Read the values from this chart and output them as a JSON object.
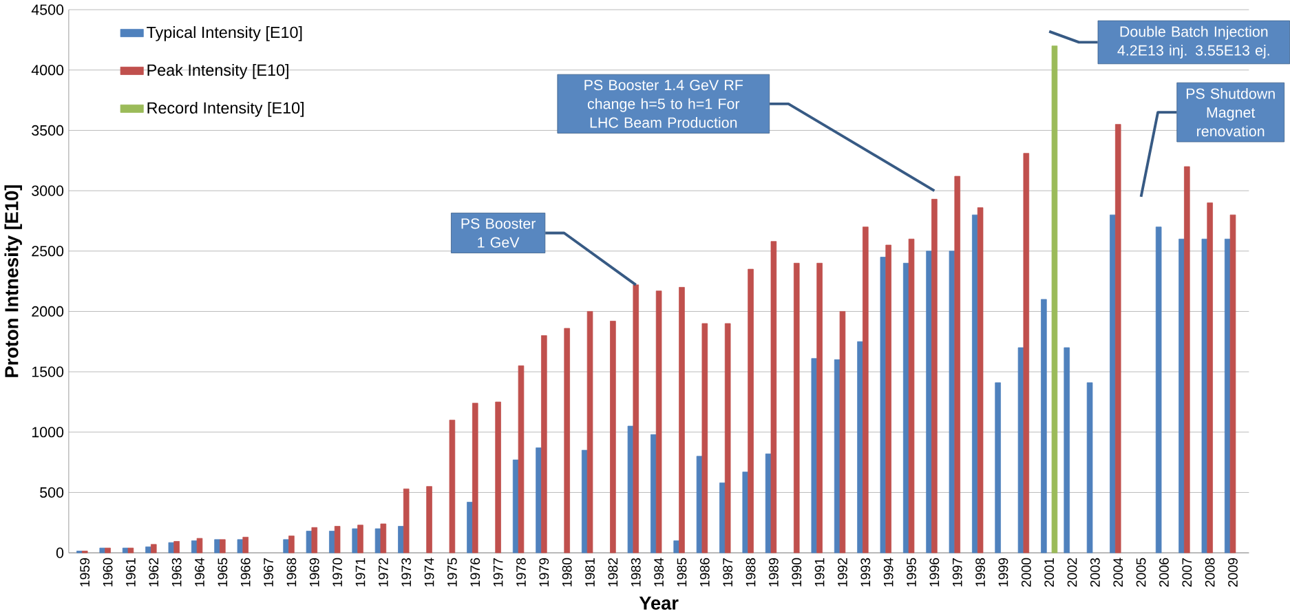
{
  "chart_data": {
    "type": "bar",
    "xlabel": "Year",
    "ylabel": "Proton Intnesity [E10]",
    "categories": [
      "1959",
      "1960",
      "1961",
      "1962",
      "1963",
      "1964",
      "1965",
      "1966",
      "1967",
      "1968",
      "1969",
      "1970",
      "1971",
      "1972",
      "1973",
      "1974",
      "1975",
      "1976",
      "1977",
      "1978",
      "1979",
      "1980",
      "1981",
      "1982",
      "1983",
      "1984",
      "1985",
      "1986",
      "1987",
      "1988",
      "1989",
      "1990",
      "1991",
      "1992",
      "1993",
      "1994",
      "1995",
      "1996",
      "1997",
      "1998",
      "1999",
      "2000",
      "2001",
      "2002",
      "2003",
      "2004",
      "2005",
      "2006",
      "2007",
      "2008",
      "2009"
    ],
    "series": [
      {
        "name": "Typical Intensity [E10]",
        "color": "#4f81bd",
        "values": [
          15,
          40,
          40,
          50,
          85,
          100,
          110,
          110,
          null,
          110,
          180,
          180,
          200,
          200,
          220,
          null,
          null,
          420,
          null,
          770,
          870,
          null,
          850,
          null,
          1050,
          980,
          100,
          800,
          580,
          670,
          820,
          null,
          1610,
          1600,
          1750,
          2450,
          2400,
          2500,
          2500,
          2800,
          1410,
          1700,
          2100,
          1700,
          1410,
          2800,
          null,
          2700,
          2600,
          2600,
          2600
        ]
      },
      {
        "name": "Peak Intensity [E10]",
        "color": "#c0504d",
        "values": [
          15,
          40,
          40,
          70,
          95,
          120,
          110,
          130,
          null,
          140,
          210,
          220,
          230,
          240,
          530,
          550,
          1100,
          1240,
          1250,
          1550,
          1800,
          1860,
          2000,
          1920,
          2220,
          2170,
          2200,
          1900,
          1900,
          2350,
          2580,
          2400,
          2400,
          2000,
          2700,
          2550,
          2600,
          2930,
          3120,
          2860,
          null,
          3310,
          null,
          null,
          null,
          3550,
          null,
          null,
          3200,
          2900,
          2800
        ]
      },
      {
        "name": "Record Intensity [E10]",
        "color": "#9bbb59",
        "values": [
          null,
          null,
          null,
          null,
          null,
          null,
          null,
          null,
          null,
          null,
          null,
          null,
          null,
          null,
          null,
          null,
          null,
          null,
          null,
          null,
          null,
          null,
          null,
          null,
          null,
          null,
          null,
          null,
          null,
          null,
          null,
          null,
          null,
          null,
          null,
          null,
          null,
          null,
          null,
          null,
          null,
          null,
          4200,
          null,
          null,
          null,
          null,
          null,
          null,
          null,
          null
        ]
      }
    ],
    "ylim": [
      0,
      4500
    ],
    "yticks": [
      0,
      500,
      1000,
      1500,
      2000,
      2500,
      3000,
      3500,
      4000,
      4500
    ],
    "grid": "y",
    "legend": "top left",
    "annotations": [
      {
        "text": "PS Booster 1 GeV",
        "x": "1983",
        "y": 2220
      },
      "PS Booster 1.4 GeV RF change h=5 to h=1 For LHC Beam Production",
      "Double Batch Injection 4.2E13 inj. 3.55E13 ej.",
      "PS Shutdown Magnet renovation"
    ]
  }
}
